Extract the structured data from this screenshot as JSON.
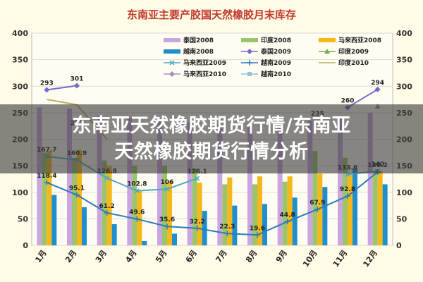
{
  "chart_data": {
    "type": "bar",
    "title": "东南亚主要产胶国天然橡胶月末库存",
    "categories": [
      "1月",
      "2月",
      "3月",
      "4月",
      "5月",
      "6月",
      "7月",
      "8月",
      "9月",
      "10月",
      "11月",
      "12月"
    ],
    "ylim": [
      0,
      400
    ],
    "yticks": [
      0,
      50,
      100,
      150,
      200,
      250,
      300,
      350,
      400
    ],
    "series": [
      {
        "name": "泰国2008",
        "kind": "bar",
        "color": "#c9a6e0",
        "values": [
          260,
          258,
          245,
          240,
          238,
          232,
          228,
          225,
          230,
          235,
          240,
          250
        ]
      },
      {
        "name": "印度2008",
        "kind": "bar",
        "color": "#9bc56a",
        "values": [
          175,
          165,
          160,
          150,
          150,
          145,
          115,
          115,
          120,
          178,
          165,
          140
        ]
      },
      {
        "name": "马来西亚2008",
        "kind": "bar",
        "color": "#f5b818",
        "values": [
          178,
          180,
          150,
          103,
          120,
          118,
          128,
          130,
          130,
          135,
          133,
          140
        ]
      },
      {
        "name": "越南2008",
        "kind": "bar",
        "color": "#1f8ecf",
        "values": [
          95,
          72,
          40,
          8,
          22,
          65,
          75,
          78,
          90,
          110,
          145,
          115
        ]
      },
      {
        "name": "泰国2009",
        "kind": "line",
        "color": "#7b68c9",
        "marker": "diamond",
        "values": [
          293,
          301,
          null,
          null,
          null,
          null,
          null,
          null,
          null,
          null,
          260,
          294
        ]
      },
      {
        "name": "印度2009",
        "kind": "line",
        "color": "#7aa84a",
        "marker": "triangle",
        "values": [
          null,
          null,
          null,
          null,
          null,
          null,
          null,
          null,
          null,
          null,
          null,
          262
        ]
      },
      {
        "name": "马来西亚2009",
        "kind": "line",
        "color": "#4aa8c8",
        "marker": "x",
        "values": [
          167.7,
          160.9,
          126.8,
          102.8,
          106,
          126.1,
          null,
          null,
          null,
          null,
          133.6,
          140
        ]
      },
      {
        "name": "越南2009",
        "kind": "line",
        "color": "#2a7cb8",
        "marker": "star",
        "values": [
          118.4,
          95.1,
          61.2,
          49.6,
          35.6,
          32.2,
          22.3,
          19.6,
          44.8,
          67.9,
          92.8,
          138.2
        ]
      },
      {
        "name": "印度2010",
        "kind": "line",
        "color": "#b9b25a",
        "marker": "none",
        "values": [
          275,
          265,
          200,
          null,
          null,
          null,
          null,
          null,
          null,
          null,
          null,
          null
        ]
      },
      {
        "name": "马来西亚2010",
        "kind": "line",
        "color": "#a58fc9",
        "marker": "diamond",
        "values": [
          null,
          null,
          null,
          null,
          null,
          null,
          null,
          null,
          null,
          null,
          null,
          null
        ]
      },
      {
        "name": "越南2010",
        "kind": "line",
        "color": "#8ec2e0",
        "marker": "square",
        "values": [
          null,
          null,
          null,
          null,
          null,
          null,
          null,
          null,
          null,
          null,
          null,
          null
        ]
      }
    ],
    "data_labels": [
      {
        "series": "泰国2009",
        "index": 0,
        "text": "293"
      },
      {
        "series": "泰国2009",
        "index": 1,
        "text": "301"
      },
      {
        "series": "泰国2009",
        "index": 10,
        "text": "260"
      },
      {
        "series": "泰国2009",
        "index": 11,
        "text": "294"
      },
      {
        "series": "马来西亚2009",
        "index": 0,
        "text": "167.7"
      },
      {
        "series": "马来西亚2009",
        "index": 1,
        "text": "160.9"
      },
      {
        "series": "马来西亚2009",
        "index": 2,
        "text": "126.8"
      },
      {
        "series": "马来西亚2009",
        "index": 3,
        "text": "102.8"
      },
      {
        "series": "马来西亚2009",
        "index": 4,
        "text": "106"
      },
      {
        "series": "马来西亚2009",
        "index": 5,
        "text": "126.1"
      },
      {
        "series": "马来西亚2009",
        "index": 10,
        "text": "133.6"
      },
      {
        "series": "马来西亚2009",
        "index": 11,
        "text": "140"
      },
      {
        "series": "越南2009",
        "index": 0,
        "text": "118.4"
      },
      {
        "series": "越南2009",
        "index": 1,
        "text": "95.1"
      },
      {
        "series": "越南2009",
        "index": 2,
        "text": "61.2"
      },
      {
        "series": "越南2009",
        "index": 3,
        "text": "49.6"
      },
      {
        "series": "越南2009",
        "index": 4,
        "text": "35.6"
      },
      {
        "series": "越南2009",
        "index": 5,
        "text": "32.2"
      },
      {
        "series": "越南2009",
        "index": 6,
        "text": "22.3"
      },
      {
        "series": "越南2009",
        "index": 7,
        "text": "19.6"
      },
      {
        "series": "越南2009",
        "index": 8,
        "text": "44.8"
      },
      {
        "series": "越南2009",
        "index": 9,
        "text": "67.9"
      },
      {
        "series": "越南2009",
        "index": 10,
        "text": "92.8"
      },
      {
        "series": "越南2009",
        "index": 11,
        "text": "138.2"
      },
      {
        "series": "印度2009",
        "index": 9,
        "text": "235"
      },
      {
        "series": "印度2009",
        "index": 1,
        "text": "217"
      }
    ],
    "grid": true,
    "legend_position": "top-right",
    "dual_axis": true
  },
  "banner": {
    "line1": "东南亚天然橡胶期货行情/东南亚",
    "line2": "天然橡胶期货行情分析"
  }
}
